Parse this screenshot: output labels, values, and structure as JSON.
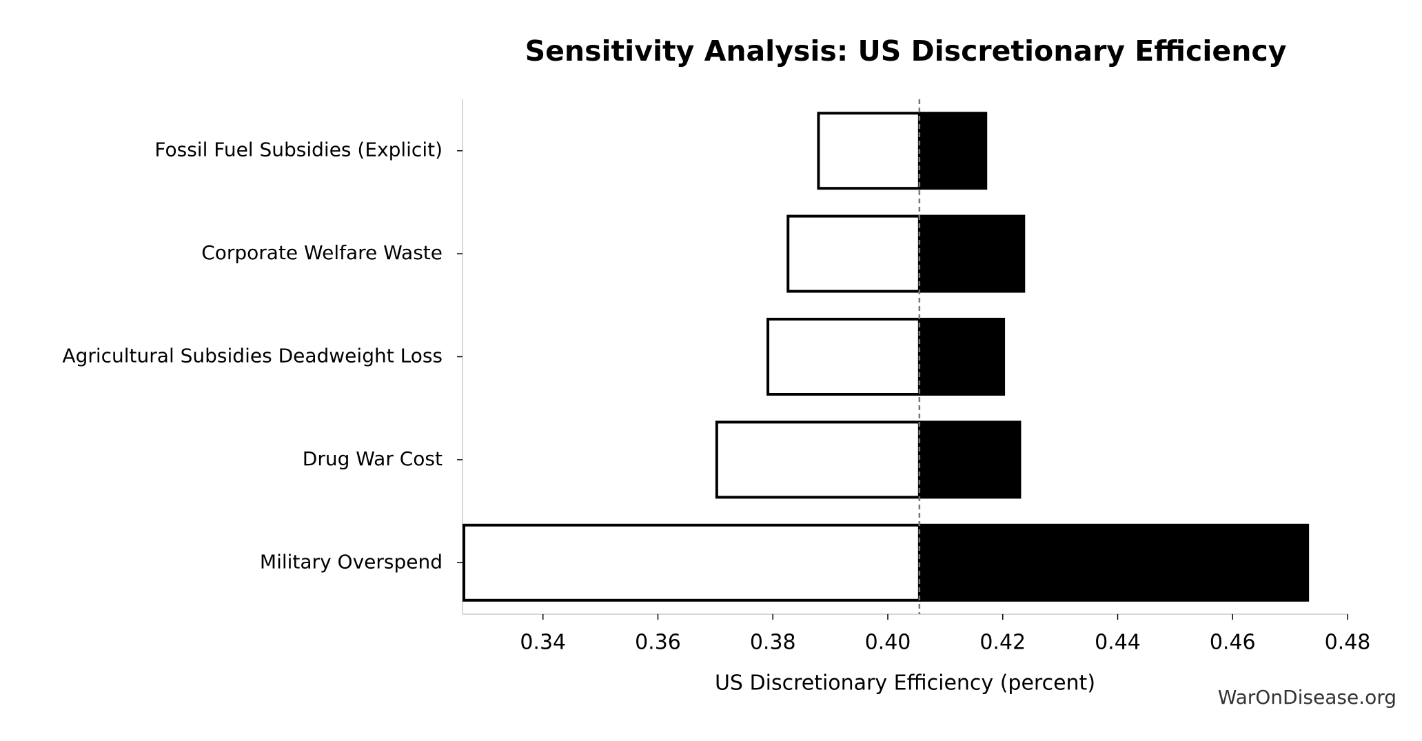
{
  "chart_data": {
    "type": "tornado",
    "title": "Sensitivity Analysis: US Discretionary Efficiency",
    "x_label": "US Discretionary Efficiency (percent)",
    "watermark": "WarOnDisease.org",
    "categories": [
      "Fossil Fuel Subsidies (Explicit)",
      "Corporate Welfare Waste",
      "Agricultural Subsidies Deadweight Loss",
      "Drug War Cost",
      "Military Overspend"
    ],
    "baseline": 0.4055,
    "low_values": [
      0.3877,
      0.3824,
      0.3789,
      0.37,
      0.326
    ],
    "high_values": [
      0.4173,
      0.4239,
      0.4204,
      0.4232,
      0.4733
    ],
    "low_color": "#ffffff",
    "high_color": "#000000",
    "xlim": [
      0.326,
      0.48
    ],
    "xticks": [
      0.34,
      0.36,
      0.38,
      {
        "value": 0.4,
        "label": "0.40"
      },
      0.42,
      0.44,
      0.46,
      0.48
    ]
  }
}
